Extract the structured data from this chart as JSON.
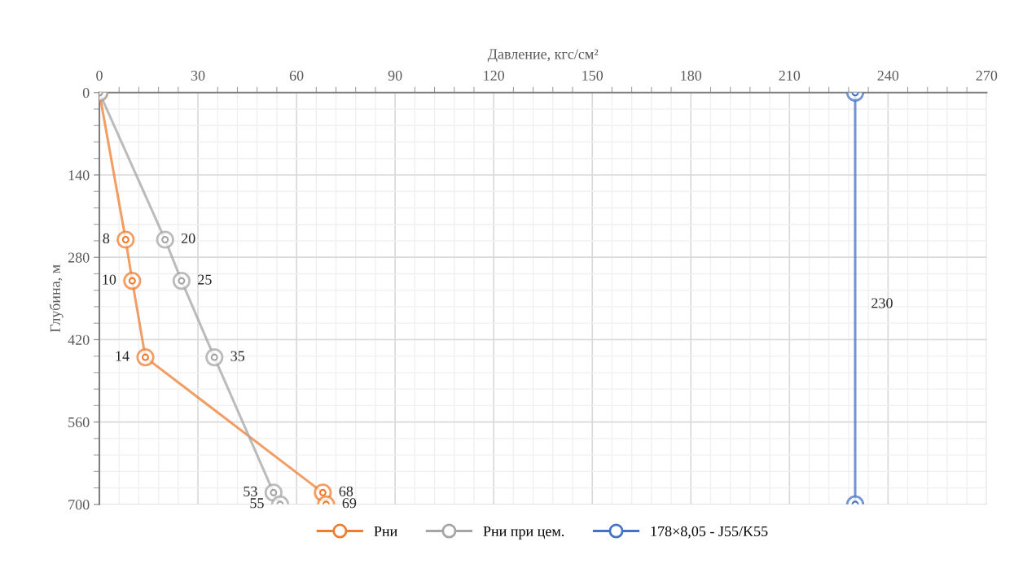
{
  "chart_data": {
    "type": "line",
    "xlabel": "Давление, кгс/см²",
    "ylabel": "Глубина, м",
    "xlim": [
      0,
      270
    ],
    "xticks": [
      0,
      30,
      60,
      90,
      120,
      150,
      180,
      210,
      240,
      270
    ],
    "ylim": [
      700,
      0
    ],
    "yticks": [
      0,
      140,
      280,
      420,
      560,
      700
    ],
    "grid": true,
    "legend": "bottom",
    "marker": "circle",
    "line_style": "solid",
    "series": [
      {
        "name": "Рни",
        "color": "#ed7d31",
        "x": [
          0,
          8,
          10,
          14,
          68,
          69
        ],
        "values": [
          0,
          250,
          320,
          450,
          680,
          700
        ]
      },
      {
        "name": "Рни при цем.",
        "color": "#a5a5a5",
        "x": [
          0,
          20,
          25,
          35,
          53,
          55
        ],
        "values": [
          0,
          250,
          320,
          450,
          680,
          700
        ]
      },
      {
        "name": "178×8,05 - J55/K55",
        "color": "#4472c4",
        "x": [
          230,
          230
        ],
        "values": [
          0,
          700
        ]
      }
    ],
    "annotations": [
      {
        "text": "8",
        "x": 8,
        "y": 250
      },
      {
        "text": "10",
        "x": 10,
        "y": 320
      },
      {
        "text": "14",
        "x": 14,
        "y": 450
      },
      {
        "text": "68",
        "x": 68,
        "y": 680
      },
      {
        "text": "69",
        "x": 69,
        "y": 700
      },
      {
        "text": "20",
        "x": 20,
        "y": 250
      },
      {
        "text": "25",
        "x": 25,
        "y": 320
      },
      {
        "text": "35",
        "x": 35,
        "y": 450
      },
      {
        "text": "53",
        "x": 53,
        "y": 680
      },
      {
        "text": "55",
        "x": 55,
        "y": 700
      },
      {
        "text": "230",
        "x": 230,
        "y": 360
      }
    ]
  }
}
